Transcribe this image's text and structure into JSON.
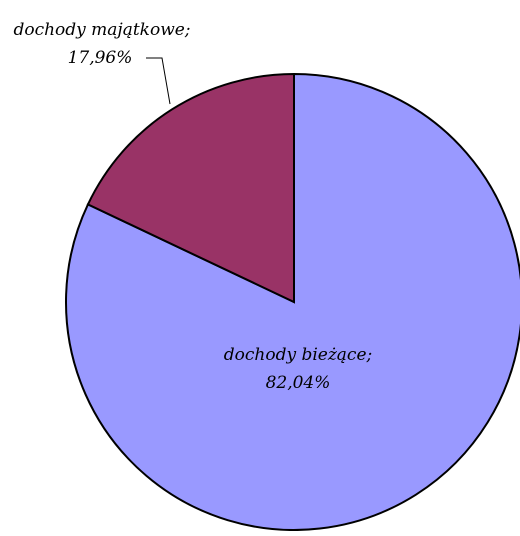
{
  "chart_data": {
    "type": "pie",
    "title": "",
    "slices": [
      {
        "label": "dochody bieżące",
        "percent_label": "82,04%",
        "value": 82.04,
        "color": "#9999ff"
      },
      {
        "label": "dochody majątkowe",
        "percent_label": "17,96%",
        "value": 17.96,
        "color": "#993366"
      }
    ],
    "start_angle": "12 o'clock, clockwise",
    "legend": "none"
  }
}
